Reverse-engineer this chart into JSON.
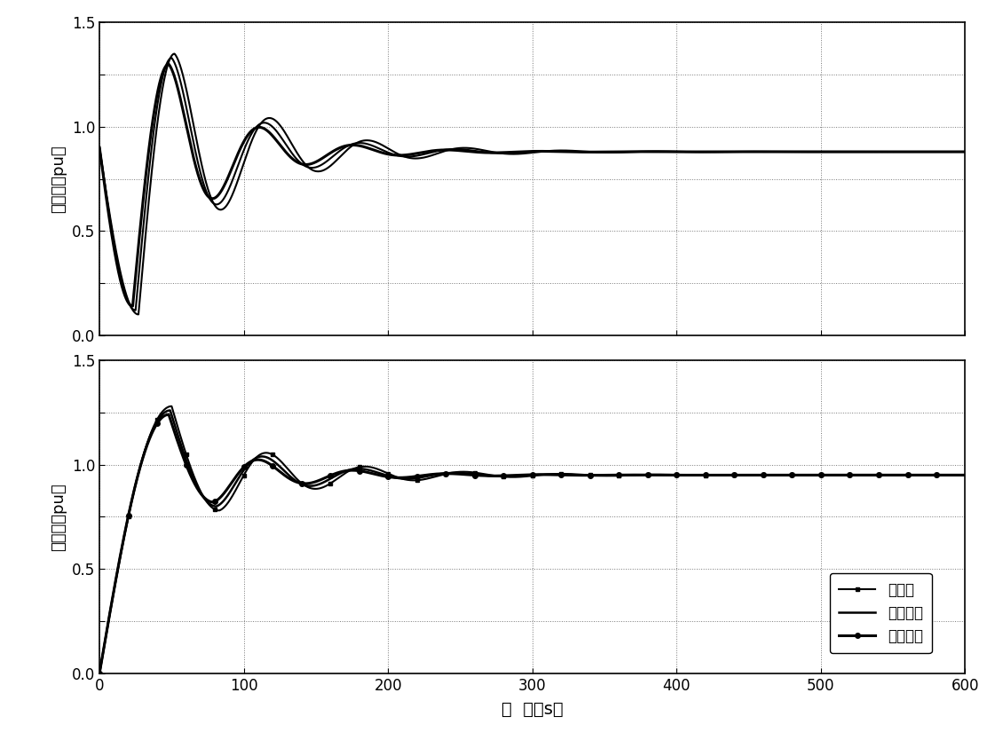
{
  "ylabel_top": "热功率（pu）",
  "ylabel_bottom": "电功率（pu）",
  "xlabel": "时  间（s）",
  "legend_labels": [
    "无补偶",
    "增益补偶",
    "慢性补偶"
  ],
  "xlim": [
    0,
    600
  ],
  "ylim": [
    0.0,
    1.5
  ],
  "yticks": [
    0.0,
    0.25,
    0.5,
    0.75,
    1.0,
    1.25,
    1.5
  ],
  "ytick_labels": [
    "0.0",
    "",
    "0.5",
    "",
    "1.0",
    "",
    "1.5"
  ],
  "xticks": [
    0,
    100,
    200,
    300,
    400,
    500,
    600
  ],
  "background_color": "#ffffff",
  "grid_color": "#555555",
  "line_color": "#000000",
  "thermal_settle": 0.88,
  "electric_settle": 0.95,
  "thermal_trough": 0.1,
  "thermal_peak": 1.35,
  "electric_peak": 1.28
}
